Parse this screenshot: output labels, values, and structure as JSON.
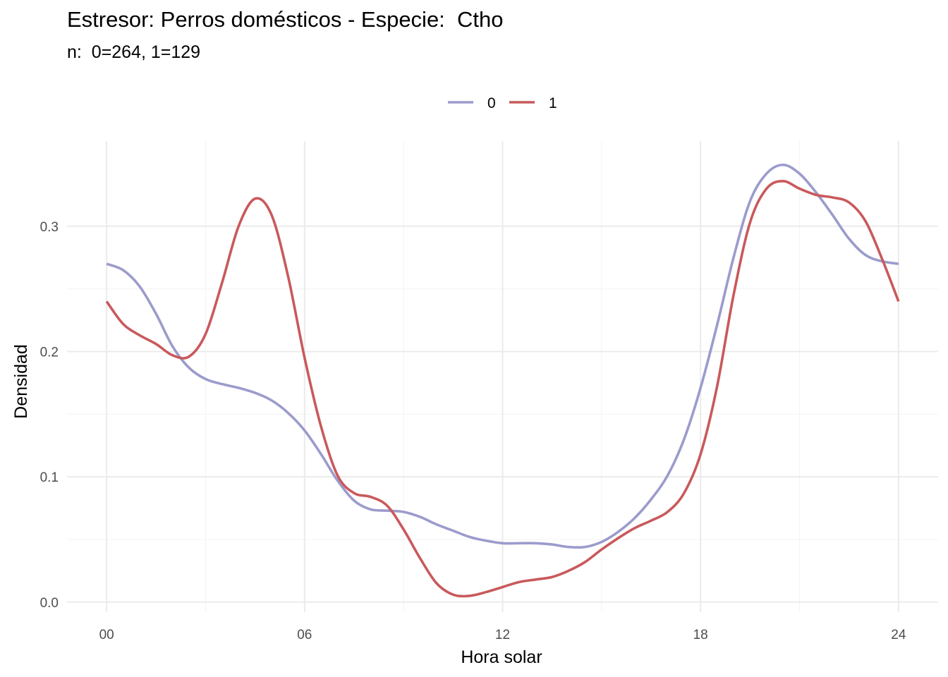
{
  "chart_data": {
    "type": "line",
    "title": "Estresor: Perros domésticos - Especie:  Ctho",
    "subtitle": "n:  0=264, 1=129",
    "xlabel": "Hora solar",
    "ylabel": "Densidad",
    "xlim": [
      -1.2,
      25.2
    ],
    "ylim": [
      -0.008,
      0.368
    ],
    "x_ticks": [
      0,
      6,
      12,
      18,
      24
    ],
    "x_tick_labels": [
      "00",
      "06",
      "12",
      "18",
      "24"
    ],
    "y_ticks": [
      0.0,
      0.1,
      0.2,
      0.3
    ],
    "y_tick_labels": [
      "0.0",
      "0.1",
      "0.2",
      "0.3"
    ],
    "grid": true,
    "legend_position": "top",
    "series": [
      {
        "name": "0",
        "color": "#9b9bcc",
        "x": [
          0,
          0.5,
          1,
          1.5,
          2,
          2.5,
          3,
          3.5,
          4,
          4.5,
          5,
          5.5,
          6,
          6.5,
          7,
          7.5,
          8,
          8.5,
          9,
          9.5,
          10,
          10.5,
          11,
          11.5,
          12,
          12.5,
          13,
          13.5,
          14,
          14.5,
          15,
          15.5,
          16,
          16.5,
          17,
          17.5,
          18,
          18.5,
          19,
          19.5,
          20,
          20.5,
          21,
          21.5,
          22,
          22.5,
          23,
          23.5,
          24
        ],
        "y": [
          0.27,
          0.265,
          0.252,
          0.23,
          0.204,
          0.187,
          0.178,
          0.174,
          0.171,
          0.167,
          0.161,
          0.151,
          0.137,
          0.118,
          0.097,
          0.081,
          0.074,
          0.073,
          0.072,
          0.068,
          0.062,
          0.057,
          0.052,
          0.049,
          0.047,
          0.047,
          0.047,
          0.046,
          0.044,
          0.044,
          0.048,
          0.056,
          0.067,
          0.082,
          0.101,
          0.13,
          0.171,
          0.221,
          0.275,
          0.32,
          0.342,
          0.349,
          0.342,
          0.327,
          0.309,
          0.29,
          0.277,
          0.272,
          0.27
        ]
      },
      {
        "name": "1",
        "color": "#c9595c",
        "x": [
          0,
          0.5,
          1,
          1.5,
          2,
          2.5,
          3,
          3.5,
          4,
          4.5,
          5,
          5.5,
          6,
          6.5,
          7,
          7.5,
          8,
          8.5,
          9,
          9.5,
          10,
          10.5,
          11,
          11.5,
          12,
          12.5,
          13,
          13.5,
          14,
          14.5,
          15,
          15.5,
          16,
          16.5,
          17,
          17.5,
          18,
          18.5,
          19,
          19.5,
          20,
          20.5,
          21,
          21.5,
          22,
          22.5,
          23,
          23.5,
          24
        ],
        "y": [
          0.24,
          0.222,
          0.213,
          0.206,
          0.197,
          0.196,
          0.214,
          0.255,
          0.3,
          0.322,
          0.309,
          0.26,
          0.195,
          0.14,
          0.101,
          0.087,
          0.084,
          0.077,
          0.058,
          0.035,
          0.015,
          0.006,
          0.005,
          0.008,
          0.012,
          0.016,
          0.018,
          0.02,
          0.025,
          0.032,
          0.042,
          0.051,
          0.059,
          0.065,
          0.072,
          0.087,
          0.118,
          0.172,
          0.245,
          0.303,
          0.33,
          0.336,
          0.33,
          0.325,
          0.323,
          0.319,
          0.304,
          0.274,
          0.24
        ]
      }
    ]
  }
}
